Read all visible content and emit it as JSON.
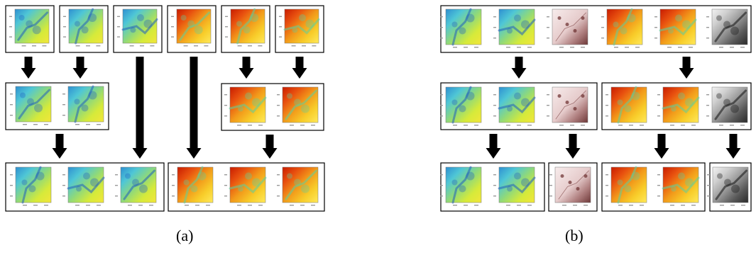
{
  "captions": {
    "a": "(a)",
    "b": "(b)"
  },
  "map_palettes": {
    "blue": [
      "#2e8fd1",
      "#4fc6d6",
      "#8fd97a",
      "#d6ea3a",
      "#f2e63a"
    ],
    "fire": [
      "#c81c00",
      "#e8500f",
      "#f29a1a",
      "#f8cd2a",
      "#ffe95a"
    ],
    "pink": [
      "#f7ecec",
      "#efdcdc",
      "#e6cccc",
      "#b08080",
      "#6e3838"
    ],
    "gray": [
      "#f2f2f2",
      "#cfcfcf",
      "#9a9a9a",
      "#5a5a5a",
      "#2a2a2a"
    ]
  },
  "map_features": {
    "blue": "#1f5fbf",
    "fire": "#5fcf9a",
    "pink": "#6a2c2c",
    "gray": "#111111"
  }
}
